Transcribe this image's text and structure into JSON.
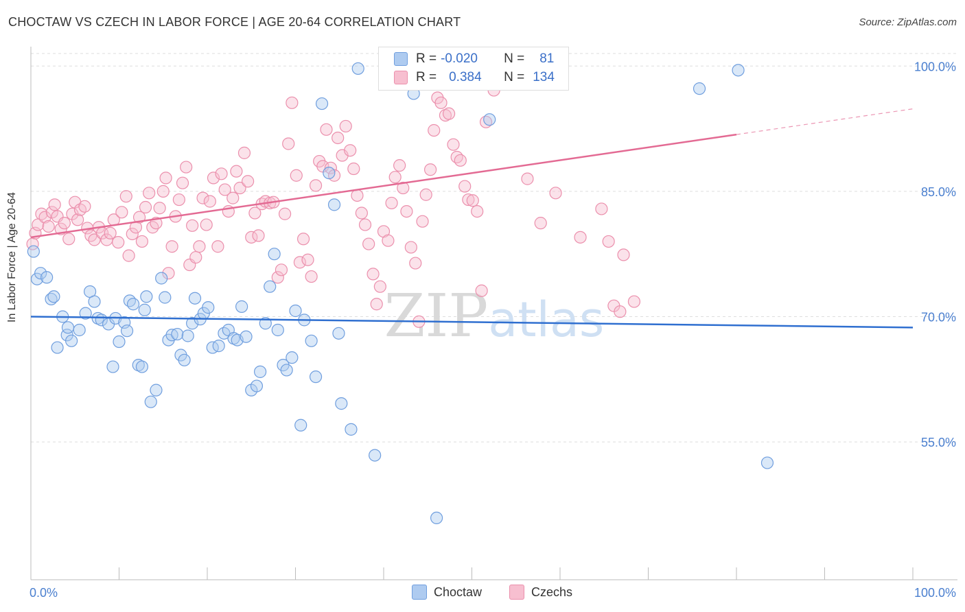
{
  "title": "CHOCTAW VS CZECH IN LABOR FORCE | AGE 20-64 CORRELATION CHART",
  "source": "Source: ZipAtlas.com",
  "watermark": "ZIPatlas",
  "legend": {
    "rows": [
      {
        "r_label": "R =",
        "r_value": "-0.020",
        "n_label": "N =",
        "n_value": "81"
      },
      {
        "r_label": "R =",
        "r_value": "0.384",
        "n_label": "N =",
        "n_value": "134"
      }
    ]
  },
  "bottom_legend": {
    "choctaw": "Choctaw",
    "czechs": "Czechs"
  },
  "colors": {
    "choctaw_fill": "#aecbf0",
    "choctaw_stroke": "#6f9ede",
    "choctaw_line": "#2f6fd0",
    "czech_fill": "#f7bfd0",
    "czech_stroke": "#eb8fac",
    "czech_line": "#e36a93",
    "tick_label": "#4a7fcf",
    "grid": "#dddddd"
  },
  "chart_data": {
    "type": "scatter",
    "title": "CHOCTAW VS CZECH IN LABOR FORCE | AGE 20-64 CORRELATION CHART",
    "xlabel": "",
    "ylabel": "In Labor Force | Age 20-64",
    "xlim": [
      0,
      100
    ],
    "ylim": [
      38.5,
      101.5
    ],
    "x_tick_labels": [
      "0.0%",
      "100.0%"
    ],
    "y_ticks": [
      55,
      70,
      85,
      100
    ],
    "y_tick_labels": [
      "55.0%",
      "70.0%",
      "85.0%",
      "100.0%"
    ],
    "grid": true,
    "legend_position": "top-center",
    "series": [
      {
        "name": "Choctaw",
        "r": -0.02,
        "n": 81,
        "trend": {
          "x": [
            0,
            100
          ],
          "y": [
            70.0,
            68.7
          ]
        },
        "points": [
          [
            0.3,
            77.8
          ],
          [
            0.7,
            74.5
          ],
          [
            1.1,
            75.2
          ],
          [
            1.8,
            74.7
          ],
          [
            2.3,
            72.1
          ],
          [
            2.6,
            72.4
          ],
          [
            3.0,
            66.3
          ],
          [
            3.6,
            70.0
          ],
          [
            4.1,
            67.8
          ],
          [
            4.2,
            68.7
          ],
          [
            4.6,
            67.1
          ],
          [
            5.5,
            68.4
          ],
          [
            6.2,
            70.4
          ],
          [
            6.7,
            73.0
          ],
          [
            7.2,
            71.8
          ],
          [
            7.6,
            69.8
          ],
          [
            8.0,
            69.6
          ],
          [
            8.8,
            69.1
          ],
          [
            9.3,
            64.0
          ],
          [
            9.6,
            69.8
          ],
          [
            10.0,
            67.0
          ],
          [
            10.6,
            69.3
          ],
          [
            10.9,
            68.3
          ],
          [
            11.2,
            71.9
          ],
          [
            11.6,
            71.5
          ],
          [
            12.2,
            64.2
          ],
          [
            12.6,
            64.0
          ],
          [
            12.9,
            70.8
          ],
          [
            13.1,
            72.4
          ],
          [
            13.6,
            59.8
          ],
          [
            14.2,
            61.2
          ],
          [
            14.8,
            74.6
          ],
          [
            15.2,
            72.3
          ],
          [
            15.6,
            67.2
          ],
          [
            16.0,
            67.8
          ],
          [
            16.6,
            67.9
          ],
          [
            17.0,
            65.4
          ],
          [
            17.4,
            64.8
          ],
          [
            17.8,
            67.7
          ],
          [
            18.3,
            69.2
          ],
          [
            18.6,
            72.2
          ],
          [
            19.2,
            69.7
          ],
          [
            19.6,
            70.4
          ],
          [
            20.1,
            71.1
          ],
          [
            20.6,
            66.3
          ],
          [
            21.3,
            66.5
          ],
          [
            21.9,
            68.0
          ],
          [
            22.4,
            68.4
          ],
          [
            23.0,
            67.4
          ],
          [
            23.4,
            67.2
          ],
          [
            23.9,
            71.2
          ],
          [
            24.4,
            67.6
          ],
          [
            25.0,
            61.2
          ],
          [
            25.6,
            61.7
          ],
          [
            26.0,
            63.4
          ],
          [
            26.6,
            69.2
          ],
          [
            27.1,
            73.6
          ],
          [
            27.6,
            77.5
          ],
          [
            28.0,
            68.4
          ],
          [
            28.6,
            64.2
          ],
          [
            29.0,
            63.6
          ],
          [
            29.6,
            65.1
          ],
          [
            30.0,
            70.7
          ],
          [
            30.6,
            57.0
          ],
          [
            31.0,
            69.6
          ],
          [
            31.8,
            67.1
          ],
          [
            32.3,
            62.8
          ],
          [
            33.0,
            95.5
          ],
          [
            33.8,
            87.2
          ],
          [
            34.4,
            83.4
          ],
          [
            34.9,
            68.0
          ],
          [
            35.2,
            59.6
          ],
          [
            36.3,
            56.5
          ],
          [
            37.1,
            99.7
          ],
          [
            39.0,
            53.4
          ],
          [
            43.4,
            96.7
          ],
          [
            46.0,
            45.9
          ],
          [
            52.0,
            93.6
          ],
          [
            75.8,
            97.3
          ],
          [
            80.2,
            99.5
          ],
          [
            83.5,
            52.5
          ]
        ]
      },
      {
        "name": "Czechs",
        "r": 0.384,
        "n": 134,
        "trend": {
          "x": [
            0,
            80
          ],
          "y": [
            79.5,
            91.8
          ]
        },
        "points": [
          [
            0.2,
            78.7
          ],
          [
            0.5,
            80.0
          ],
          [
            0.8,
            81.0
          ],
          [
            1.2,
            82.3
          ],
          [
            1.6,
            81.9
          ],
          [
            2.0,
            80.8
          ],
          [
            2.4,
            82.5
          ],
          [
            2.7,
            83.4
          ],
          [
            3.0,
            82.0
          ],
          [
            3.4,
            80.5
          ],
          [
            3.8,
            81.2
          ],
          [
            4.3,
            79.3
          ],
          [
            4.7,
            82.3
          ],
          [
            5.0,
            83.7
          ],
          [
            5.3,
            81.6
          ],
          [
            5.6,
            82.8
          ],
          [
            6.1,
            83.2
          ],
          [
            6.4,
            80.6
          ],
          [
            6.8,
            79.7
          ],
          [
            7.2,
            79.2
          ],
          [
            7.7,
            80.7
          ],
          [
            8.1,
            80.0
          ],
          [
            8.6,
            79.2
          ],
          [
            9.0,
            80.0
          ],
          [
            9.4,
            81.6
          ],
          [
            9.9,
            78.9
          ],
          [
            10.3,
            82.5
          ],
          [
            10.8,
            84.4
          ],
          [
            11.1,
            77.3
          ],
          [
            11.5,
            79.9
          ],
          [
            11.9,
            80.7
          ],
          [
            12.3,
            81.9
          ],
          [
            12.6,
            79.0
          ],
          [
            13.0,
            83.1
          ],
          [
            13.4,
            84.8
          ],
          [
            13.8,
            80.7
          ],
          [
            14.2,
            81.2
          ],
          [
            14.6,
            83.0
          ],
          [
            15.0,
            85.0
          ],
          [
            15.3,
            86.6
          ],
          [
            15.6,
            75.2
          ],
          [
            16.0,
            78.4
          ],
          [
            16.4,
            82.0
          ],
          [
            16.8,
            84.0
          ],
          [
            17.2,
            86.0
          ],
          [
            17.6,
            87.9
          ],
          [
            18.0,
            76.2
          ],
          [
            18.3,
            80.9
          ],
          [
            18.7,
            77.1
          ],
          [
            19.1,
            78.4
          ],
          [
            19.5,
            84.2
          ],
          [
            19.9,
            81.0
          ],
          [
            20.3,
            83.8
          ],
          [
            20.7,
            86.6
          ],
          [
            21.2,
            78.4
          ],
          [
            21.6,
            87.1
          ],
          [
            22.0,
            85.2
          ],
          [
            22.4,
            82.6
          ],
          [
            22.9,
            84.2
          ],
          [
            23.3,
            87.4
          ],
          [
            23.7,
            85.4
          ],
          [
            24.2,
            89.6
          ],
          [
            24.6,
            86.2
          ],
          [
            25.0,
            79.5
          ],
          [
            25.4,
            82.4
          ],
          [
            25.8,
            79.7
          ],
          [
            26.2,
            83.5
          ],
          [
            26.6,
            83.8
          ],
          [
            27.1,
            83.6
          ],
          [
            27.5,
            83.7
          ],
          [
            28.0,
            74.7
          ],
          [
            28.4,
            75.6
          ],
          [
            28.8,
            82.3
          ],
          [
            29.2,
            90.7
          ],
          [
            29.6,
            95.6
          ],
          [
            30.1,
            86.9
          ],
          [
            30.5,
            76.5
          ],
          [
            30.9,
            79.3
          ],
          [
            31.4,
            76.8
          ],
          [
            31.8,
            74.8
          ],
          [
            32.3,
            85.7
          ],
          [
            32.7,
            88.6
          ],
          [
            33.1,
            88.0
          ],
          [
            33.5,
            92.4
          ],
          [
            34.0,
            87.8
          ],
          [
            34.4,
            86.9
          ],
          [
            34.8,
            91.4
          ],
          [
            35.3,
            89.3
          ],
          [
            35.7,
            92.8
          ],
          [
            36.2,
            89.9
          ],
          [
            36.6,
            87.7
          ],
          [
            37.0,
            84.5
          ],
          [
            37.5,
            82.4
          ],
          [
            37.9,
            81.0
          ],
          [
            38.3,
            78.7
          ],
          [
            38.8,
            75.1
          ],
          [
            39.2,
            71.5
          ],
          [
            39.6,
            73.6
          ],
          [
            40.0,
            80.2
          ],
          [
            40.5,
            79.1
          ],
          [
            40.9,
            83.6
          ],
          [
            41.3,
            86.7
          ],
          [
            41.8,
            88.1
          ],
          [
            42.2,
            85.4
          ],
          [
            42.6,
            82.6
          ],
          [
            43.1,
            78.3
          ],
          [
            43.6,
            76.4
          ],
          [
            44.0,
            69.4
          ],
          [
            44.4,
            81.4
          ],
          [
            44.8,
            84.6
          ],
          [
            45.3,
            87.6
          ],
          [
            45.7,
            92.3
          ],
          [
            46.1,
            96.2
          ],
          [
            46.5,
            95.6
          ],
          [
            47.0,
            94.1
          ],
          [
            47.4,
            94.3
          ],
          [
            47.9,
            90.6
          ],
          [
            48.3,
            89.1
          ],
          [
            48.7,
            88.7
          ],
          [
            49.2,
            85.6
          ],
          [
            49.6,
            84.0
          ],
          [
            50.1,
            83.9
          ],
          [
            50.6,
            82.6
          ],
          [
            51.1,
            73.1
          ],
          [
            51.6,
            93.3
          ],
          [
            52.5,
            97.1
          ],
          [
            53.2,
            99.8
          ],
          [
            54.0,
            98.2
          ],
          [
            56.3,
            86.5
          ],
          [
            57.8,
            81.2
          ],
          [
            59.5,
            84.8
          ],
          [
            62.3,
            79.5
          ],
          [
            64.7,
            82.9
          ],
          [
            65.5,
            79.0
          ],
          [
            66.1,
            71.3
          ],
          [
            66.8,
            70.6
          ],
          [
            67.2,
            77.4
          ],
          [
            68.4,
            71.8
          ]
        ]
      }
    ]
  }
}
